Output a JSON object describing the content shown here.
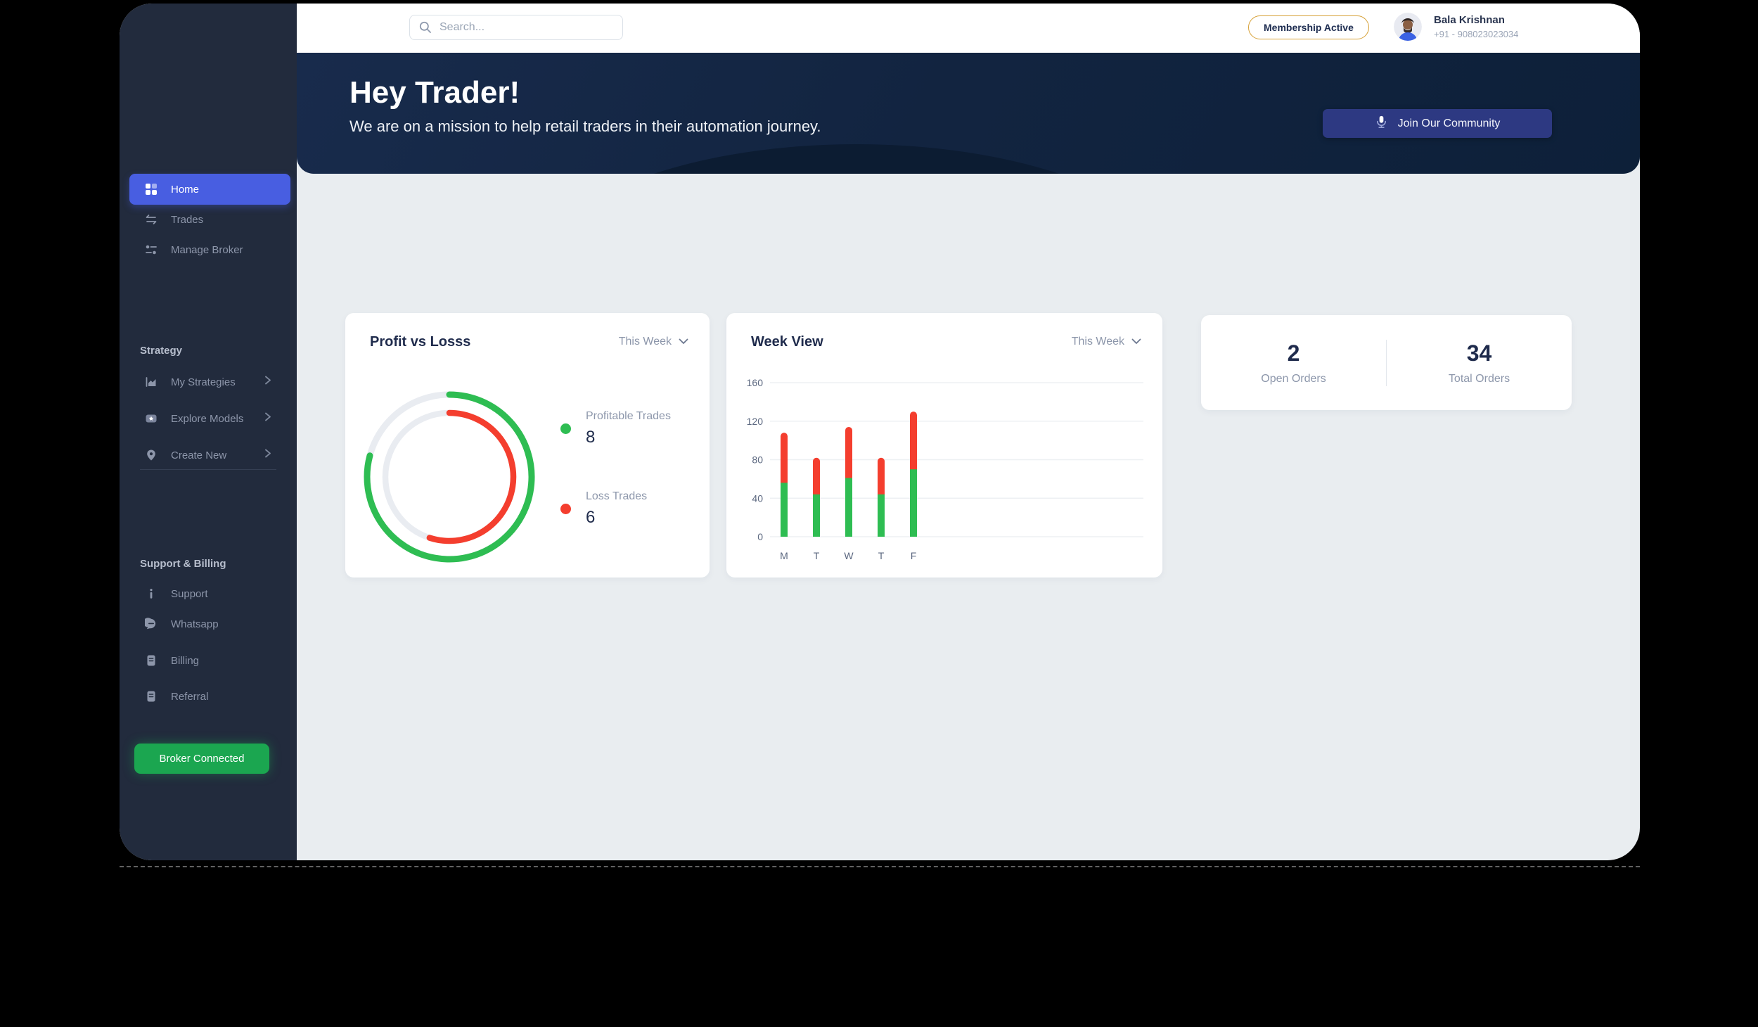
{
  "colors": {
    "accent_blue": "#485ee1",
    "green": "#2ebd52",
    "red": "#f43e2e",
    "broker_green": "#1ba650",
    "badge_gold": "#d6a035",
    "hero_navy": "#122440",
    "sidebar_navy": "#222b3d",
    "content_gray": "#e9edf0"
  },
  "icons": [
    "search-icon",
    "grid-icon",
    "swap-icon",
    "sliders-icon",
    "area-chart-icon",
    "models-star-icon",
    "map-pin-icon",
    "info-icon",
    "chat-icon",
    "receipt-icon",
    "chevron-right-icon",
    "chevron-down-icon",
    "mic-icon",
    "avatar"
  ],
  "topbar": {
    "search_placeholder": "Search...",
    "membership_badge": "Membership Active",
    "user": {
      "name": "Bala Krishnan",
      "phone": "+91 - 908023023034"
    }
  },
  "hero": {
    "title": "Hey Trader!",
    "subtitle": "We are on a mission to help retail traders in their automation journey.",
    "cta_label": "Join Our Community"
  },
  "sidebar": {
    "main": [
      {
        "label": "Home",
        "active": true
      },
      {
        "label": "Trades",
        "active": false
      },
      {
        "label": "Manage Broker",
        "active": false
      }
    ],
    "sections": [
      {
        "title": "Strategy",
        "items": [
          {
            "label": "My Strategies"
          },
          {
            "label": "Explore Models"
          },
          {
            "label": "Create New"
          }
        ]
      },
      {
        "title": "Support & Billing",
        "items": [
          {
            "label": "Support"
          },
          {
            "label": "Whatsapp"
          },
          {
            "label": "Billing"
          },
          {
            "label": "Referral"
          }
        ]
      }
    ],
    "broker_status": "Broker Connected"
  },
  "cards": {
    "profit": {
      "title": "Profit vs Losss",
      "filter": "This Week"
    },
    "week": {
      "title": "Week View",
      "filter": "This Week"
    },
    "orders": {
      "stats": [
        {
          "value": "2",
          "label": "Open Orders"
        },
        {
          "value": "34",
          "label": "Total Orders"
        }
      ]
    }
  },
  "chart_data": [
    {
      "type": "donut",
      "title": "Profit vs Losss",
      "legend": [
        {
          "label": "Profitable Trades",
          "value": 8,
          "color": "#2ebd52"
        },
        {
          "label": "Loss Trades",
          "value": 6,
          "color": "#f43e2e"
        }
      ],
      "rings": [
        {
          "name": "Profitable Trades",
          "color": "#2ebd52",
          "track_color": "#e9ecf1",
          "radius": 117,
          "stroke_width": 9,
          "sweep_deg": 285
        },
        {
          "name": "Loss Trades",
          "color": "#f43e2e",
          "track_color": "#e9ecf1",
          "radius": 91,
          "stroke_width": 8.5,
          "sweep_deg": 198
        }
      ]
    },
    {
      "type": "bar",
      "stacked": true,
      "title": "Week View",
      "categories": [
        "M",
        "T",
        "W",
        "T",
        "F"
      ],
      "series": [
        {
          "name": "Profitable",
          "color": "#2ebd52",
          "values": [
            56,
            44,
            61,
            44,
            70
          ]
        },
        {
          "name": "Loss",
          "color": "#f43e2e",
          "values": [
            52,
            38,
            53,
            38,
            60
          ]
        }
      ],
      "ylim": [
        0,
        160
      ],
      "yticks": [
        0,
        40,
        80,
        120,
        160
      ],
      "grid": true,
      "legend_position": "none"
    }
  ]
}
